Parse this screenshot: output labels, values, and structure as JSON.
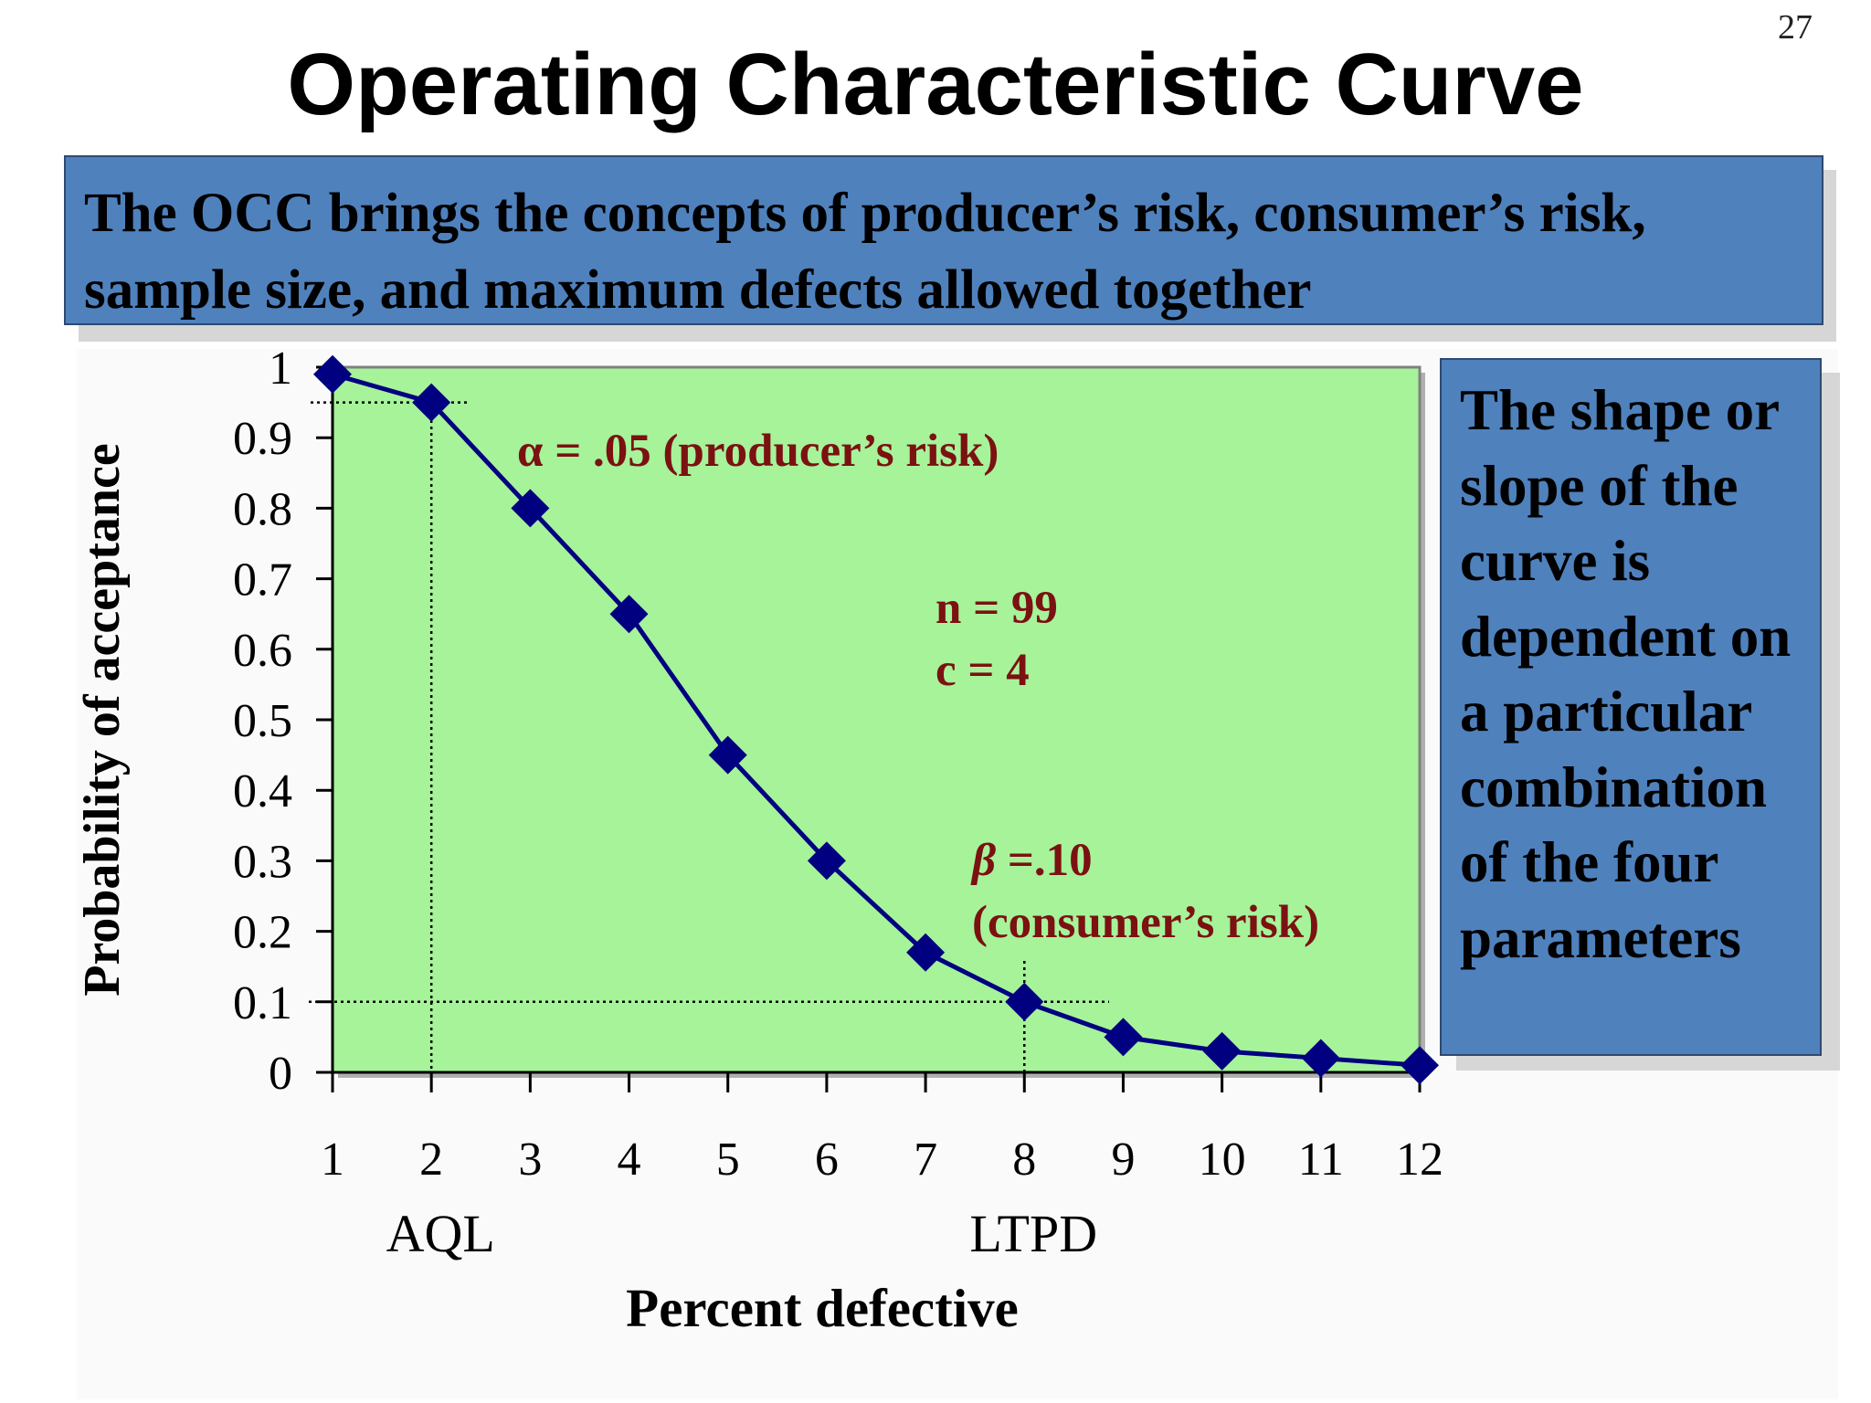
{
  "page_number": "27",
  "title": "Operating Characteristic Curve",
  "banner": {
    "text": "The OCC brings the concepts of producer’s risk, consumer’s risk, sample size, and maximum defects allowed together"
  },
  "side_note": {
    "text": "The shape or slope of the curve is dependent on a particular combination of the four parameters"
  },
  "colors": {
    "plot_area": "#a6f39a",
    "banner": "#4f81bd",
    "curve": "#000080",
    "annotation": "#7b1111"
  },
  "chart_data": {
    "type": "line",
    "xlabel": "Percent defective",
    "ylabel": "Probability of acceptance",
    "x_ticks": [
      1,
      2,
      3,
      4,
      5,
      6,
      7,
      8,
      9,
      10,
      11,
      12
    ],
    "y_ticks": [
      "0",
      "0.1",
      "0.2",
      "0.3",
      "0.4",
      "0.5",
      "0.6",
      "0.7",
      "0.8",
      "0.9",
      "1"
    ],
    "xlim": [
      1,
      12
    ],
    "ylim": [
      0,
      1
    ],
    "grid": false,
    "series": [
      {
        "marker": "diamond",
        "x": [
          1,
          2,
          3,
          4,
          5,
          6,
          7,
          8,
          9,
          10,
          11,
          12
        ],
        "values": [
          0.99,
          0.95,
          0.8,
          0.65,
          0.45,
          0.3,
          0.17,
          0.1,
          0.05,
          0.03,
          0.02,
          0.01
        ]
      }
    ],
    "reference_lines": [
      {
        "axis": "y",
        "value": 0.95
      },
      {
        "axis": "x",
        "value": 2
      },
      {
        "axis": "y",
        "value": 0.1
      },
      {
        "axis": "x",
        "value": 8
      }
    ],
    "x_markers": [
      {
        "x": 2,
        "label": "AQL"
      },
      {
        "x": 8,
        "label": "LTPD"
      }
    ],
    "annotations": {
      "alpha_symbol": "α",
      "alpha_text": " = .05 (producer’s risk)",
      "n_text": "n = 99",
      "c_text": "c = 4",
      "beta_symbol": "β",
      "beta_text": " =.10",
      "beta_text2": "(consumer’s risk)"
    }
  }
}
